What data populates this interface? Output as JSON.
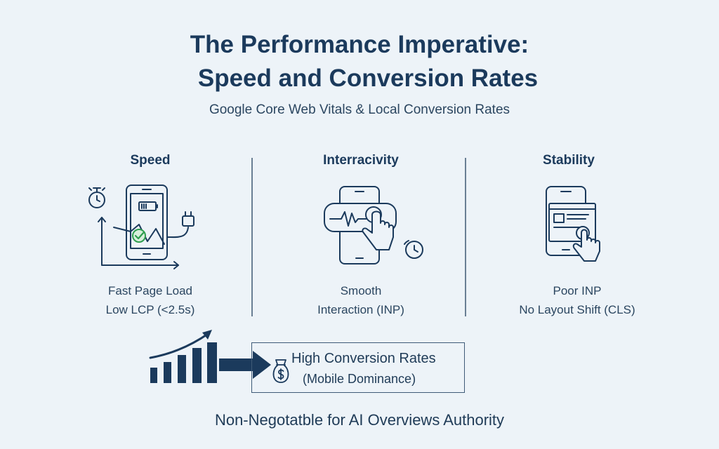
{
  "header": {
    "title_line1": "The Performance Imperative:",
    "title_line2": "Speed and Conversion Rates",
    "subtitle": "Google Core Web Vitals & Local Conversion Rates"
  },
  "columns": [
    {
      "heading": "Speed",
      "line1": "Fast Page Load",
      "line2": "Low LCP (<2.5s)",
      "icon": "phone-loading-speed-icon"
    },
    {
      "heading": "Interracivity",
      "line1": "Smooth",
      "line2": "Interaction (INP)",
      "icon": "phone-tap-interaction-icon"
    },
    {
      "heading": "Stability",
      "line1": "Poor INP",
      "line2": "No Layout Shift (CLS)",
      "icon": "phone-stable-layout-icon"
    }
  ],
  "result": {
    "line1": "High Conversion Rates",
    "line2": "(Mobile Dominance)",
    "icon": "money-bag-icon"
  },
  "footer": "Non-Negotatble for AI Overviews Authority",
  "colors": {
    "background": "#edf3f8",
    "primary": "#1b3a5c",
    "accent_green": "#2e9e4f"
  }
}
